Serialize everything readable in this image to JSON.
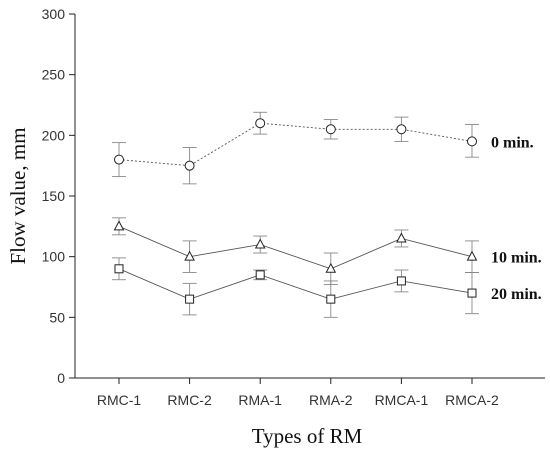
{
  "chart_data": {
    "type": "line",
    "xlabel": "Types of RM",
    "ylabel": "Flow value, mm",
    "ylim": [
      0,
      300
    ],
    "yticks": [
      0,
      50,
      100,
      150,
      200,
      250,
      300
    ],
    "categories": [
      "RMC-1",
      "RMC-2",
      "RMA-1",
      "RMA-2",
      "RMCA-1",
      "RMCA-2"
    ],
    "grid": false,
    "series": [
      {
        "name": "0 min.",
        "marker": "circle",
        "line_style": "dotted",
        "values": [
          180,
          175,
          210,
          205,
          205,
          195
        ],
        "error_low": [
          166,
          160,
          201,
          197,
          195,
          182
        ],
        "error_high": [
          194,
          190,
          219,
          213,
          215,
          209
        ]
      },
      {
        "name": "10 min.",
        "marker": "triangle",
        "line_style": "solid",
        "values": [
          125,
          100,
          110,
          90,
          115,
          100
        ],
        "error_low": [
          118,
          87,
          103,
          77,
          108,
          87
        ],
        "error_high": [
          132,
          113,
          117,
          103,
          122,
          113
        ]
      },
      {
        "name": "20 min.",
        "marker": "square",
        "line_style": "solid",
        "values": [
          90,
          65,
          85,
          65,
          80,
          70
        ],
        "error_low": [
          81,
          52,
          81,
          50,
          71,
          53
        ],
        "error_high": [
          99,
          78,
          89,
          80,
          89,
          87
        ]
      }
    ],
    "colors": {
      "line": "#555555",
      "error": "#888888",
      "axis": "#222222"
    }
  }
}
